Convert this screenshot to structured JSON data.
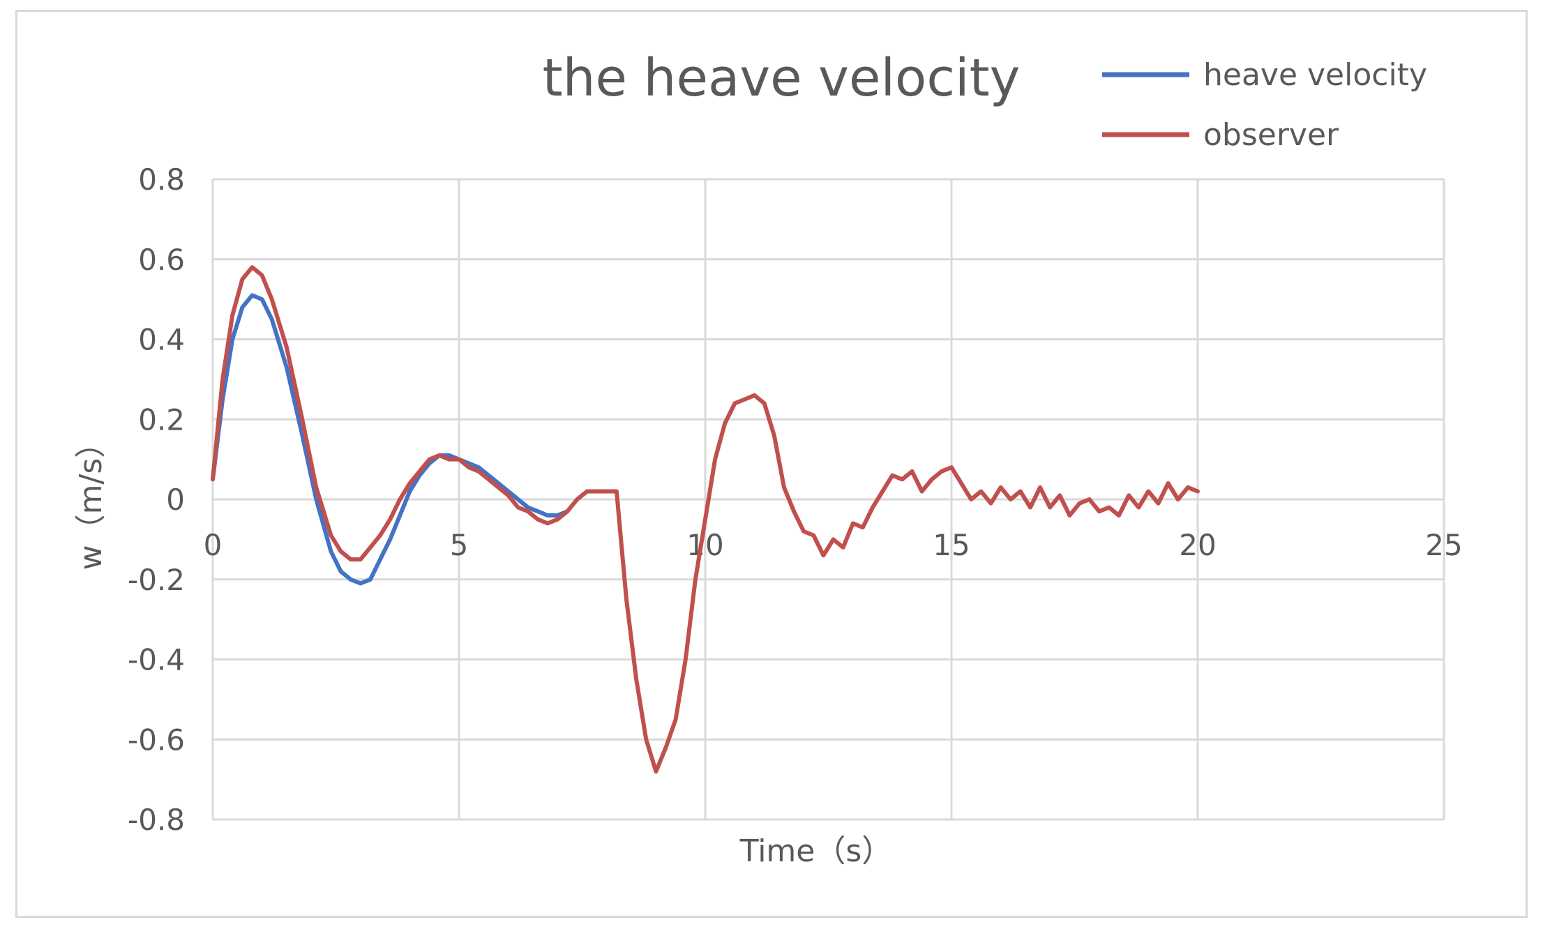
{
  "chart_data": {
    "type": "line",
    "title": "the heave velocity",
    "xlabel": "Time（s）",
    "ylabel": "w（m/s）",
    "xlim": [
      0,
      25
    ],
    "ylim": [
      -0.8,
      0.8
    ],
    "x_ticks": [
      "0",
      "5",
      "10",
      "15",
      "20",
      "25"
    ],
    "y_ticks": [
      "0.8",
      "0.6",
      "0.4",
      "0.2",
      "0",
      "-0.2",
      "-0.4",
      "-0.6",
      "-0.8"
    ],
    "grid": true,
    "legend": "top-right",
    "series": [
      {
        "name": "heave velocity",
        "color": "#4472c4",
        "x": [
          0,
          0.2,
          0.4,
          0.6,
          0.8,
          1.0,
          1.2,
          1.5,
          1.8,
          2.1,
          2.4,
          2.6,
          2.8,
          3.0,
          3.2,
          3.4,
          3.6,
          3.8,
          4.0,
          4.2,
          4.4,
          4.6,
          4.8,
          5.0,
          5.2,
          5.4,
          5.6,
          5.8,
          6.0,
          6.2,
          6.4,
          6.6,
          6.8,
          7.0,
          7.2
        ],
        "y": [
          0.05,
          0.25,
          0.4,
          0.48,
          0.51,
          0.5,
          0.45,
          0.33,
          0.17,
          0.0,
          -0.13,
          -0.18,
          -0.2,
          -0.21,
          -0.2,
          -0.15,
          -0.1,
          -0.04,
          0.02,
          0.06,
          0.09,
          0.11,
          0.11,
          0.1,
          0.09,
          0.08,
          0.06,
          0.04,
          0.02,
          0.0,
          -0.02,
          -0.03,
          -0.04,
          -0.04,
          -0.03
        ]
      },
      {
        "name": "observer",
        "color": "#c0504d",
        "x": [
          0,
          0.2,
          0.4,
          0.6,
          0.8,
          1.0,
          1.2,
          1.5,
          1.8,
          2.1,
          2.4,
          2.6,
          2.8,
          3.0,
          3.2,
          3.4,
          3.6,
          3.8,
          4.0,
          4.2,
          4.4,
          4.6,
          4.8,
          5.0,
          5.2,
          5.4,
          5.6,
          5.8,
          6.0,
          6.2,
          6.4,
          6.6,
          6.8,
          7.0,
          7.2,
          7.4,
          7.6,
          7.8,
          8.0,
          8.2,
          8.4,
          8.6,
          8.8,
          9.0,
          9.2,
          9.4,
          9.6,
          9.8,
          10.0,
          10.2,
          10.4,
          10.6,
          10.8,
          11.0,
          11.2,
          11.4,
          11.6,
          11.8,
          12.0,
          12.2,
          12.4,
          12.6,
          12.8,
          13.0,
          13.2,
          13.4,
          13.6,
          13.8,
          14.0,
          14.2,
          14.4,
          14.6,
          14.8,
          15.0,
          15.2,
          15.4,
          15.6,
          15.8,
          16.0,
          16.2,
          16.4,
          16.6,
          16.8,
          17.0,
          17.2,
          17.4,
          17.6,
          17.8,
          18.0,
          18.2,
          18.4,
          18.6,
          18.8,
          19.0,
          19.2,
          19.4,
          19.6,
          19.8,
          20.0
        ],
        "y": [
          0.05,
          0.3,
          0.46,
          0.55,
          0.58,
          0.56,
          0.5,
          0.38,
          0.21,
          0.03,
          -0.09,
          -0.13,
          -0.15,
          -0.15,
          -0.12,
          -0.09,
          -0.05,
          0.0,
          0.04,
          0.07,
          0.1,
          0.11,
          0.1,
          0.1,
          0.08,
          0.07,
          0.05,
          0.03,
          0.01,
          -0.02,
          -0.03,
          -0.05,
          -0.06,
          -0.05,
          -0.03,
          0.0,
          0.02,
          0.02,
          0.02,
          0.02,
          -0.25,
          -0.45,
          -0.6,
          -0.68,
          -0.62,
          -0.55,
          -0.4,
          -0.2,
          -0.05,
          0.1,
          0.19,
          0.24,
          0.25,
          0.26,
          0.24,
          0.16,
          0.03,
          -0.03,
          -0.08,
          -0.09,
          -0.14,
          -0.1,
          -0.12,
          -0.06,
          -0.07,
          -0.02,
          0.02,
          0.06,
          0.05,
          0.07,
          0.02,
          0.05,
          0.07,
          0.08,
          0.04,
          0.0,
          0.02,
          -0.01,
          0.03,
          0.0,
          0.02,
          -0.02,
          0.03,
          -0.02,
          0.01,
          -0.04,
          -0.01,
          0.0,
          -0.03,
          -0.02,
          -0.04,
          0.01,
          -0.02,
          0.02,
          -0.01,
          0.04,
          0.0,
          0.03,
          0.02
        ]
      }
    ]
  }
}
